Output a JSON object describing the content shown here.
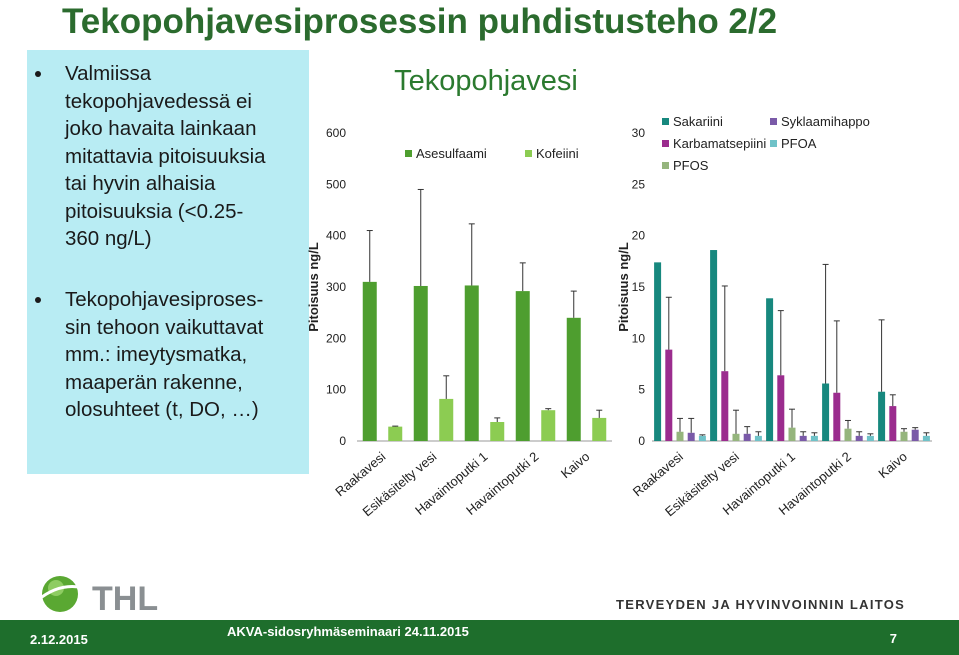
{
  "slide": {
    "title": "Tekopohjavesiprosessin puhdistusteho 2/2",
    "bullets": [
      [
        "Valmiissa",
        "tekopohjavedessä ei",
        "joko havaita lainkaan",
        "mitattavia pitoisuuksia",
        "tai hyvin alhaisia",
        "pitoisuuksia (<0.25-",
        "360 ng/L)"
      ],
      [
        "Tekopohjavesiproses-",
        "sin tehoon vaikuttavat",
        "mm.: imeytysmatka,",
        "maaperän rakenne,",
        "olosuhteet (t, DO, …)"
      ]
    ],
    "logo_text": "THL",
    "org_name": "TERVEYDEN JA HYVINVOINNIN LAITOS",
    "footer_date": "2.12.2015",
    "footer_seminar": "AKVA-sidosryhmäseminaari 24.11.2015",
    "page_number": "7"
  },
  "chart_data": [
    {
      "type": "bar",
      "title": "Tekopohjavesi",
      "ylabel": "Pitoisuus ng/L",
      "ylim": [
        0,
        600
      ],
      "yticks": [
        0,
        100,
        200,
        300,
        400,
        500,
        600
      ],
      "categories": [
        "Raakavesi",
        "Esikäsitelty vesi",
        "Havaintoputki 1",
        "Havaintoputki 2",
        "Kaivo"
      ],
      "legend_position": "top",
      "series": [
        {
          "name": "Asesulfaami",
          "color": "#4e9e2f",
          "values": [
            310,
            302,
            303,
            292,
            240
          ],
          "error": [
            100,
            188,
            120,
            55,
            52
          ]
        },
        {
          "name": "Kofeiini",
          "color": "#8ccc52",
          "values": [
            28,
            82,
            37,
            60,
            45
          ],
          "error": [
            1,
            45,
            8,
            3,
            15
          ]
        }
      ]
    },
    {
      "type": "bar",
      "ylabel": "Pitoisuus ng/L",
      "ylim": [
        0,
        30
      ],
      "yticks": [
        0,
        5,
        10,
        15,
        20,
        25,
        30
      ],
      "categories": [
        "Raakavesi",
        "Esikäsitelty vesi",
        "Havaintoputki 1",
        "Havaintoputki 2",
        "Kaivo"
      ],
      "legend_position": "top",
      "series": [
        {
          "name": "Sakariini",
          "color": "#17887e",
          "values": [
            17.4,
            18.6,
            13.9,
            5.6,
            4.8
          ],
          "error": [
            0,
            0,
            0,
            11.6,
            7.0
          ]
        },
        {
          "name": "Karbamatsepiini",
          "color": "#9b2c8e",
          "values": [
            8.9,
            6.8,
            6.4,
            4.7,
            3.4
          ],
          "error": [
            5.1,
            8.3,
            6.3,
            7.0,
            1.1
          ]
        },
        {
          "name": "PFOS",
          "color": "#95b57d",
          "values": [
            0.9,
            0.7,
            1.3,
            1.2,
            0.9
          ],
          "error": [
            1.3,
            2.3,
            1.8,
            0.8,
            0.3
          ]
        },
        {
          "name": "Syklaamihappo",
          "color": "#7a5aa8",
          "values": [
            0.8,
            0.7,
            0.5,
            0.5,
            1.1
          ],
          "error": [
            1.4,
            0.7,
            0.4,
            0.4,
            0.2
          ]
        },
        {
          "name": "PFOA",
          "color": "#6fc2c8",
          "values": [
            0.5,
            0.5,
            0.5,
            0.5,
            0.5
          ],
          "error": [
            0.1,
            0.4,
            0.3,
            0.2,
            0.3
          ]
        }
      ]
    }
  ]
}
